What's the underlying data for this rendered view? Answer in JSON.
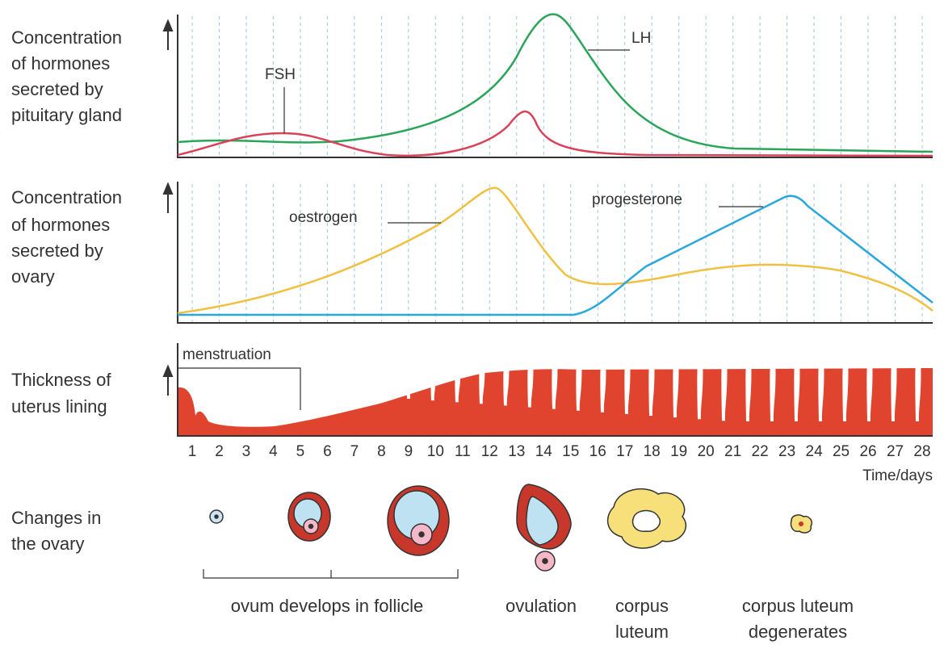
{
  "panels": [
    {
      "label_lines": [
        "Concentration",
        "of hormones",
        "secreted by",
        "pituitary gland"
      ],
      "curve_labels": [
        "LH",
        "FSH"
      ]
    },
    {
      "label_lines": [
        "Concentration",
        "of hormones",
        "secreted by",
        "ovary"
      ],
      "curve_labels": [
        "oestrogen",
        "progesterone"
      ]
    },
    {
      "label_lines": [
        "Thickness of",
        "uterus lining"
      ],
      "annotation": "menstruation"
    }
  ],
  "days": [
    1,
    2,
    3,
    4,
    5,
    6,
    7,
    8,
    9,
    10,
    11,
    12,
    13,
    14,
    15,
    16,
    17,
    18,
    19,
    20,
    21,
    22,
    23,
    24,
    25,
    26,
    27,
    28
  ],
  "time_axis_label": "Time/days",
  "ovary": {
    "label_lines": [
      "Changes in",
      "the ovary"
    ],
    "captions": [
      {
        "lines": [
          "ovum develops in follicle"
        ]
      },
      {
        "lines": [
          "ovulation"
        ]
      },
      {
        "lines": [
          "corpus",
          "luteum"
        ]
      },
      {
        "lines": [
          "corpus luteum",
          "degenerates"
        ]
      }
    ]
  }
}
